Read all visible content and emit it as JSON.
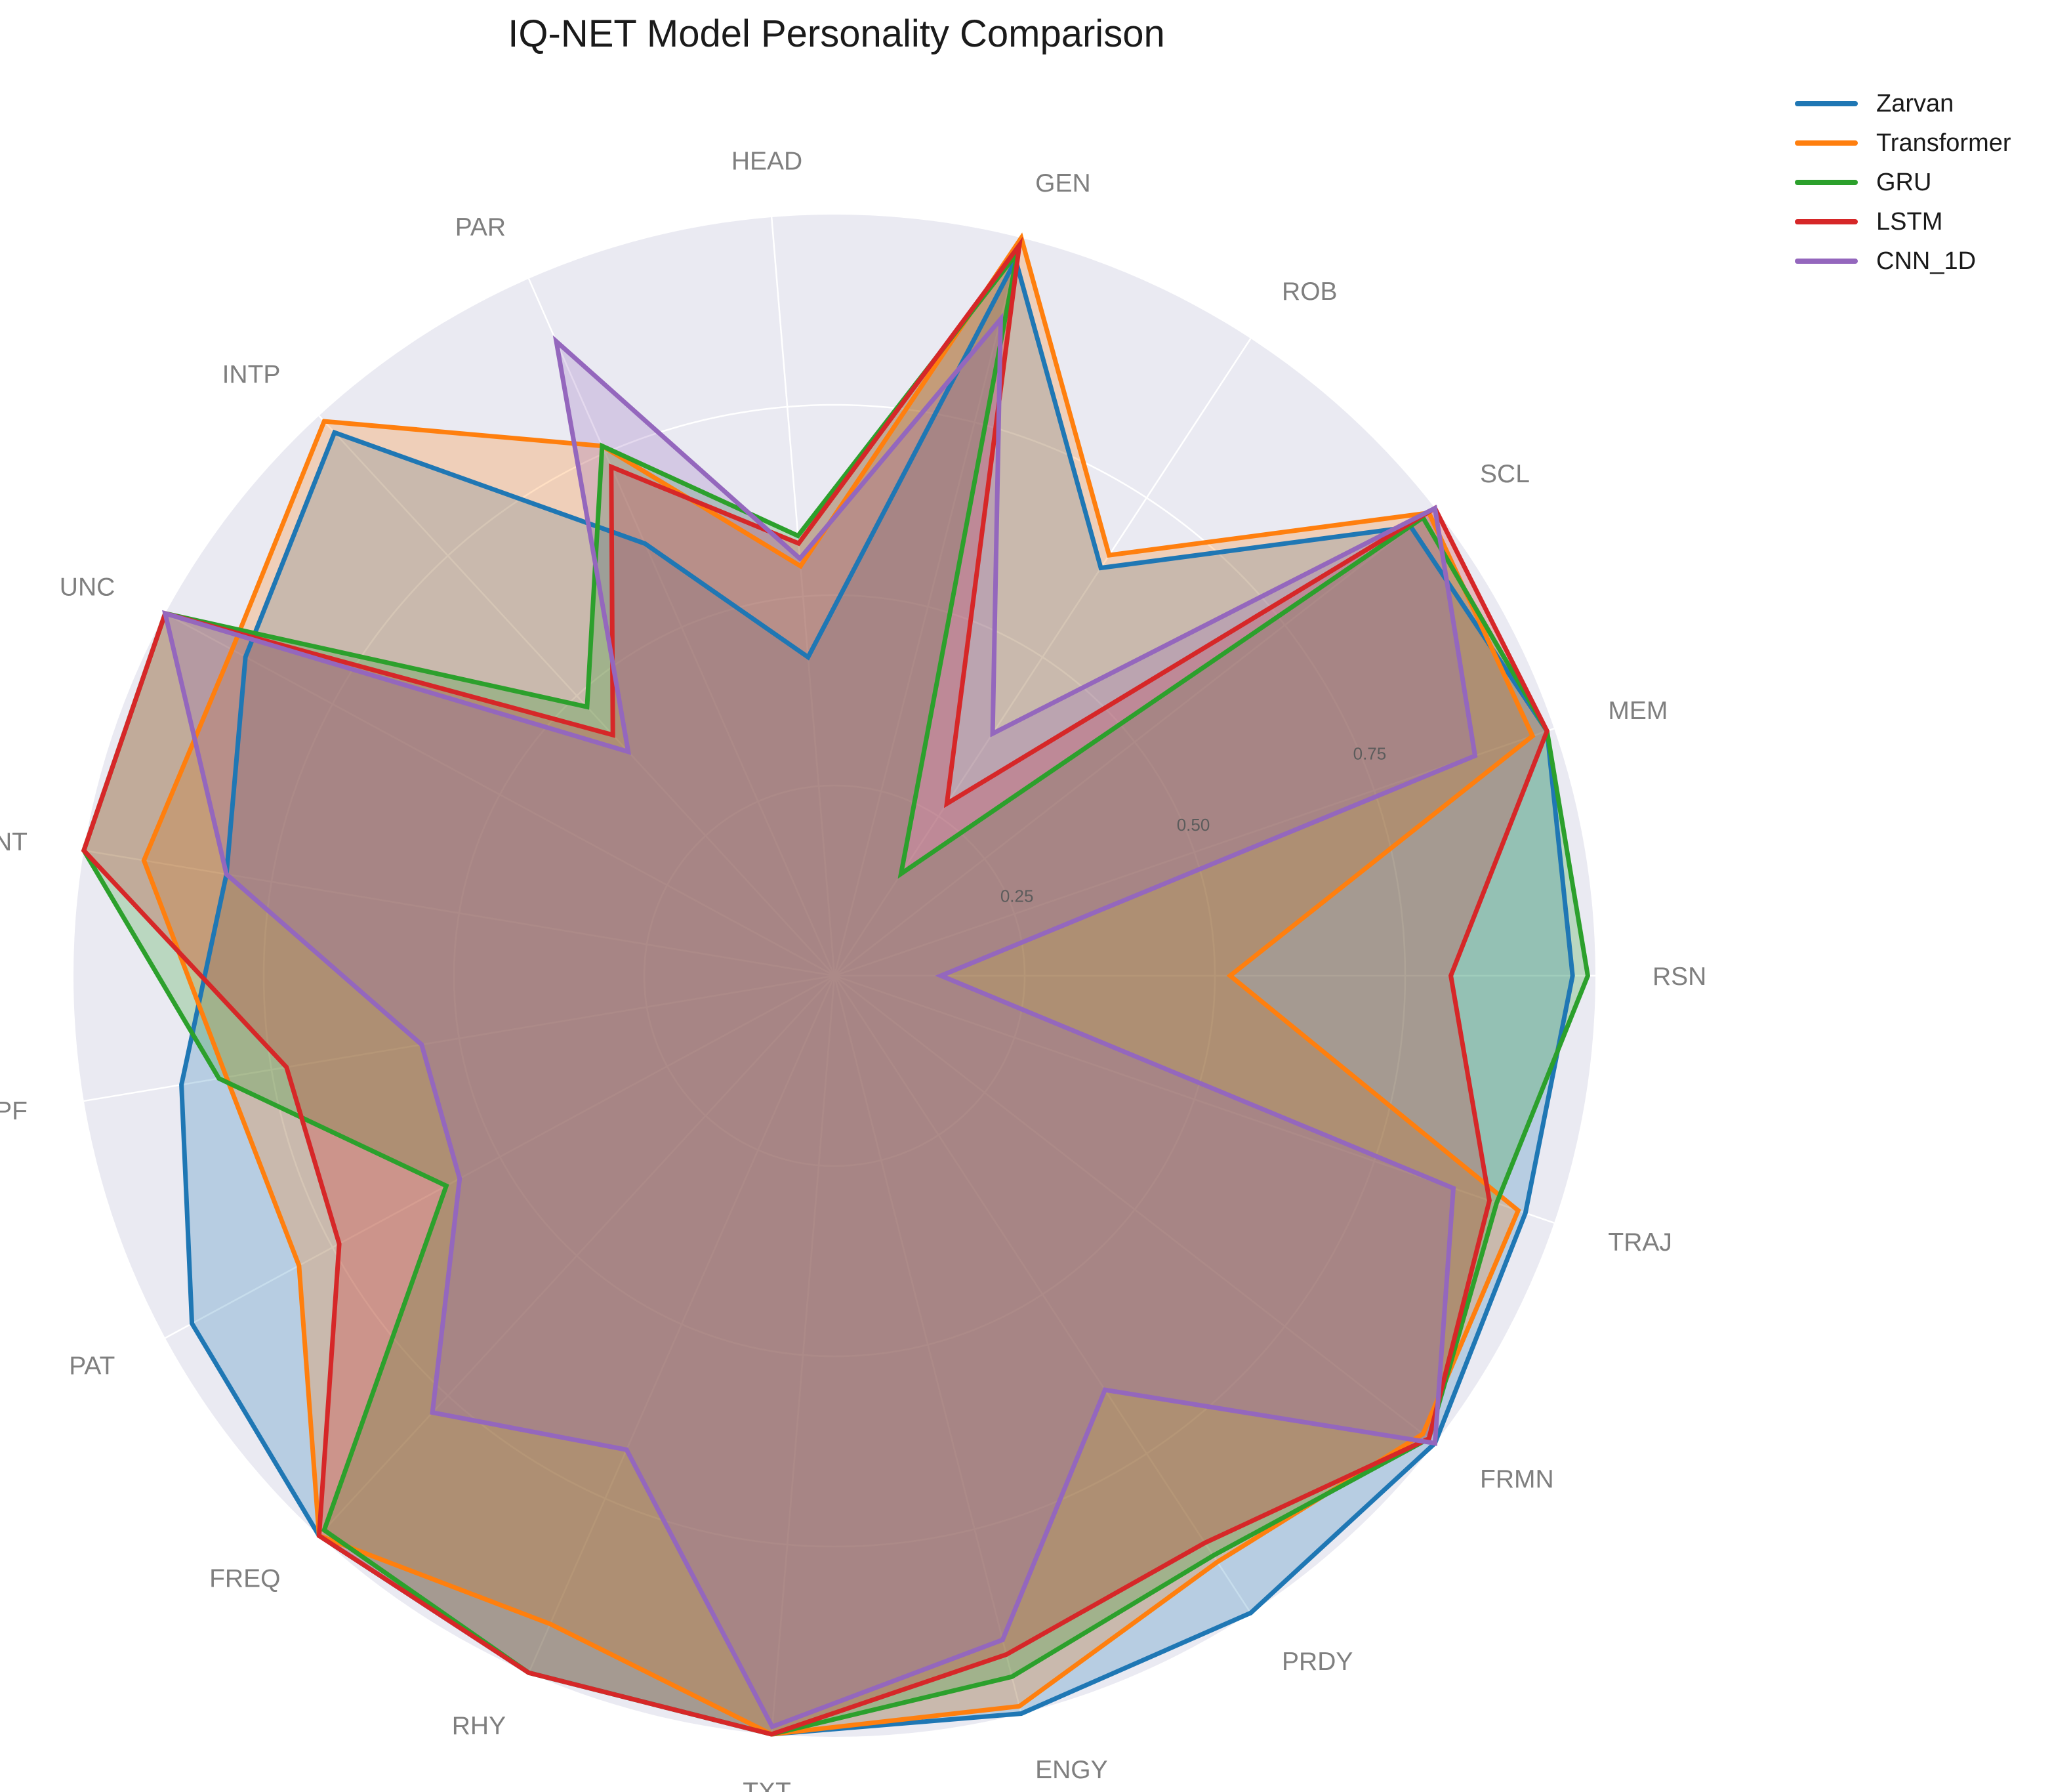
{
  "chart_data": {
    "type": "radar",
    "title": "IQ-NET Model Personality Comparison",
    "axes": [
      "RSN",
      "MEM",
      "SCL",
      "ROB",
      "GEN",
      "HEAD",
      "PAR",
      "INTP",
      "UNC",
      "CONT",
      "SPF",
      "PAT",
      "FREQ",
      "RHY",
      "TXT",
      "ENGY",
      "PRDY",
      "FRMN",
      "TRAJ"
    ],
    "radial_ticks": [
      0.25,
      0.5,
      0.75
    ],
    "radial_tick_labels": [
      "0.25",
      "0.50",
      "0.75"
    ],
    "rlim": [
      0,
      1
    ],
    "grid": true,
    "legend_position": "top-right, outside plot",
    "series": [
      {
        "name": "Zarvan",
        "color": "#1f77b4",
        "fill": "#1f77b4",
        "values": [
          0.97,
          0.99,
          0.96,
          0.64,
          0.97,
          0.42,
          0.62,
          0.97,
          0.88,
          0.81,
          0.87,
          0.96,
          1.0,
          1.0,
          1.0,
          1.0,
          1.0,
          1.0,
          0.96
        ]
      },
      {
        "name": "Transformer",
        "color": "#ff7f0e",
        "fill": "#ff7f0e",
        "values": [
          0.52,
          0.97,
          0.99,
          0.66,
          1.0,
          0.54,
          0.76,
          0.99,
          0.9,
          0.92,
          0.81,
          0.8,
          1.0,
          0.93,
          1.0,
          0.99,
          0.92,
          0.98,
          0.95
        ]
      },
      {
        "name": "GRU",
        "color": "#2ca02c",
        "fill": "#2ca02c",
        "values": [
          0.99,
          0.99,
          0.98,
          0.16,
          0.98,
          0.58,
          0.76,
          0.48,
          1.0,
          1.0,
          0.82,
          0.58,
          0.99,
          1.0,
          1.0,
          0.95,
          0.91,
          0.99,
          0.92
        ]
      },
      {
        "name": "LSTM",
        "color": "#d62728",
        "fill": "#d62728",
        "values": [
          0.81,
          0.99,
          1.0,
          0.27,
          0.99,
          0.57,
          0.73,
          0.43,
          1.0,
          1.0,
          0.73,
          0.74,
          1.0,
          1.0,
          1.0,
          0.92,
          0.89,
          0.99,
          0.91
        ]
      },
      {
        "name": "CNN_1D",
        "color": "#9467bd",
        "fill": "#9467bd",
        "values": [
          0.14,
          0.89,
          1.0,
          0.38,
          0.89,
          0.55,
          0.91,
          0.4,
          1.0,
          0.81,
          0.55,
          0.56,
          0.78,
          0.68,
          0.99,
          0.9,
          0.65,
          1.0,
          0.86
        ]
      }
    ]
  }
}
